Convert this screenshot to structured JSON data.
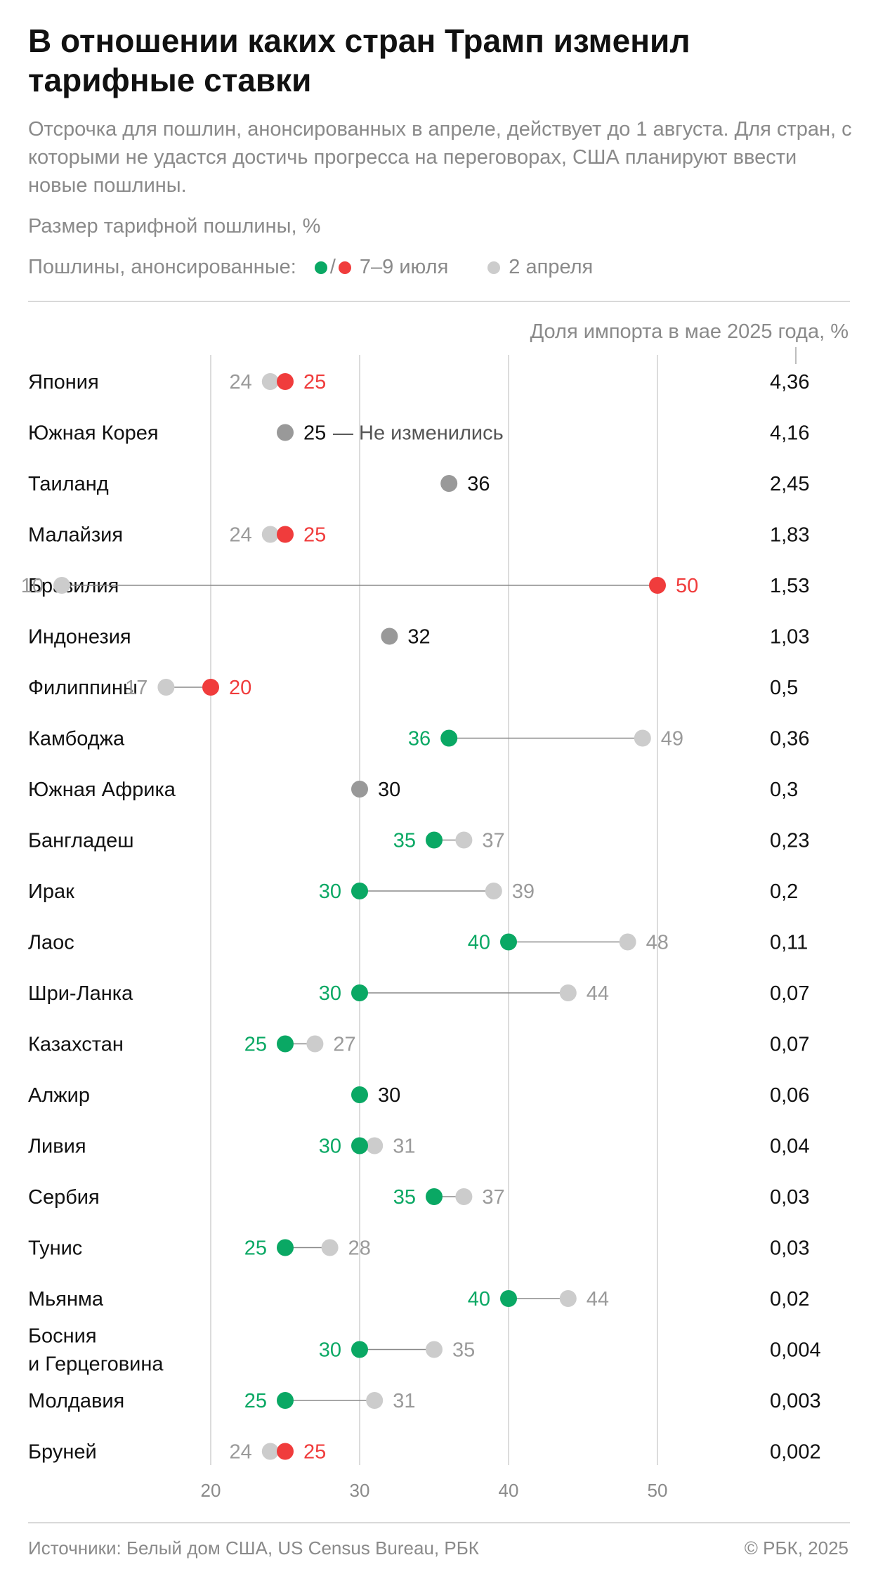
{
  "title": "В отношении каких стран Трамп изменил тарифные ставки",
  "subtitle": "Отсрочка для пошлин, анонсированных в апреле, действует до 1 августа. Для стран, с которыми не удастся достичь прогресса на переговорах, США планируют ввести новые пошлины.",
  "unit_label": "Размер тарифной пошлины, %",
  "legend": {
    "prefix": "Пошлины, анонсированные:",
    "separator": "/",
    "new_label": "7–9 июля",
    "old_label": "2 апреля"
  },
  "share_header": "Доля импорта в мае 2025 года, %",
  "annotation_unchanged": "— Не изменились",
  "footer": {
    "sources": "Источники: Белый дом США, US Census Bureau, РБК",
    "copyright": "© РБК, 2025"
  },
  "colors": {
    "increase": "#f03c3c",
    "decrease": "#0aa864",
    "unchanged": "#999999",
    "april": "#cccccc"
  },
  "chart_data": {
    "type": "dot-plot",
    "x_ticks": [
      20,
      30,
      40,
      50
    ],
    "xlim": [
      20,
      50
    ],
    "grid": true,
    "series": [
      {
        "name": "7–9 июля"
      },
      {
        "name": "2 апреля"
      }
    ],
    "rows": [
      {
        "country": "Япония",
        "april": 24,
        "july": 25,
        "status": "increase",
        "share": "4,36"
      },
      {
        "country": "Южная Корея",
        "april": 25,
        "july": 25,
        "status": "unchanged",
        "share": "4,16",
        "note": true
      },
      {
        "country": "Таиланд",
        "april": 36,
        "july": 36,
        "status": "unchanged",
        "share": "2,45"
      },
      {
        "country": "Малайзия",
        "april": 24,
        "july": 25,
        "status": "increase",
        "share": "1,83"
      },
      {
        "country": "Бразилия",
        "april": 10,
        "july": 50,
        "status": "increase",
        "share": "1,53"
      },
      {
        "country": "Индонезия",
        "april": 32,
        "july": 32,
        "status": "unchanged",
        "share": "1,03"
      },
      {
        "country": "Филиппины",
        "april": 17,
        "july": 20,
        "status": "increase",
        "share": "0,5"
      },
      {
        "country": "Камбоджа",
        "april": 49,
        "july": 36,
        "status": "decrease",
        "share": "0,36"
      },
      {
        "country": "Южная Африка",
        "april": 30,
        "july": 30,
        "status": "unchanged",
        "share": "0,3"
      },
      {
        "country": "Бангладеш",
        "april": 37,
        "july": 35,
        "status": "decrease",
        "share": "0,23"
      },
      {
        "country": "Ирак",
        "april": 39,
        "july": 30,
        "status": "decrease",
        "share": "0,2"
      },
      {
        "country": "Лаос",
        "april": 48,
        "july": 40,
        "status": "decrease",
        "share": "0,11"
      },
      {
        "country": "Шри-Ланка",
        "april": 44,
        "july": 30,
        "status": "decrease",
        "share": "0,07"
      },
      {
        "country": "Казахстан",
        "april": 27,
        "july": 25,
        "status": "decrease",
        "share": "0,07"
      },
      {
        "country": "Алжир",
        "april": 30,
        "july": 30,
        "status": "unchanged-green",
        "share": "0,06"
      },
      {
        "country": "Ливия",
        "april": 31,
        "july": 30,
        "status": "decrease",
        "share": "0,04"
      },
      {
        "country": "Сербия",
        "april": 37,
        "july": 35,
        "status": "decrease",
        "share": "0,03"
      },
      {
        "country": "Тунис",
        "april": 28,
        "july": 25,
        "status": "decrease",
        "share": "0,03"
      },
      {
        "country": "Мьянма",
        "april": 44,
        "july": 40,
        "status": "decrease",
        "share": "0,02"
      },
      {
        "country": "Босния\nи Герцеговина",
        "april": 35,
        "july": 30,
        "status": "decrease",
        "share": "0,004"
      },
      {
        "country": "Молдавия",
        "april": 31,
        "july": 25,
        "status": "decrease",
        "share": "0,003"
      },
      {
        "country": "Бруней",
        "april": 24,
        "july": 25,
        "status": "increase",
        "share": "0,002"
      }
    ]
  }
}
